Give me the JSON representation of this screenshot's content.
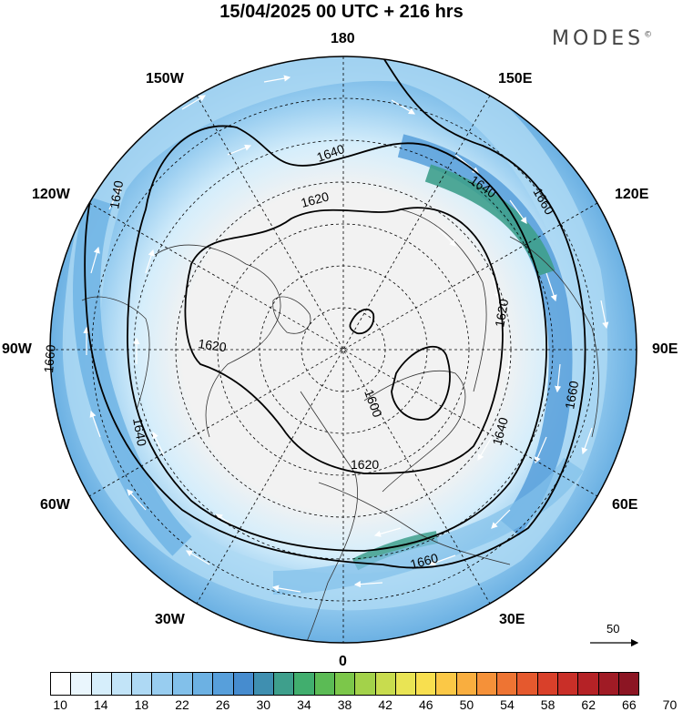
{
  "title": "15/04/2025  00 UTC  + 216 hrs",
  "brand": "MODES",
  "brand_mark": "©",
  "longitude_labels": {
    "n180": "180",
    "w150": "150W",
    "e150": "150E",
    "w120": "120W",
    "e120": "120E",
    "w90": "90W",
    "e90": "90E",
    "w60": "60W",
    "e60": "60E",
    "w30": "30W",
    "e30": "30E",
    "s0": "0"
  },
  "contour_labels": [
    "1640",
    "1620",
    "1640",
    "1660",
    "1660",
    "1640",
    "1620",
    "1620",
    "1600",
    "1620",
    "1660",
    "1640",
    "1660",
    "1640",
    "1620"
  ],
  "reference_vector": "50",
  "colorbar": {
    "ticks": [
      "10",
      "14",
      "18",
      "22",
      "26",
      "30",
      "34",
      "38",
      "42",
      "46",
      "50",
      "54",
      "58",
      "62",
      "66",
      "70"
    ],
    "colors": [
      "#ffffff",
      "#eaf6fd",
      "#d6eefb",
      "#c2e4f8",
      "#aed9f4",
      "#98cdf0",
      "#82c0ea",
      "#6cb1e3",
      "#579fdb",
      "#468ccf",
      "#3f8fb0",
      "#3e9f8c",
      "#41ae6e",
      "#5bbb55",
      "#7cc74a",
      "#a3d24a",
      "#c8dc4e",
      "#e9e454",
      "#f8df4f",
      "#fbc846",
      "#f9ae3f",
      "#f59139",
      "#ee7433",
      "#e5592e",
      "#d9402a",
      "#c92f28",
      "#b52226",
      "#a01b25",
      "#8c1523"
    ]
  }
}
